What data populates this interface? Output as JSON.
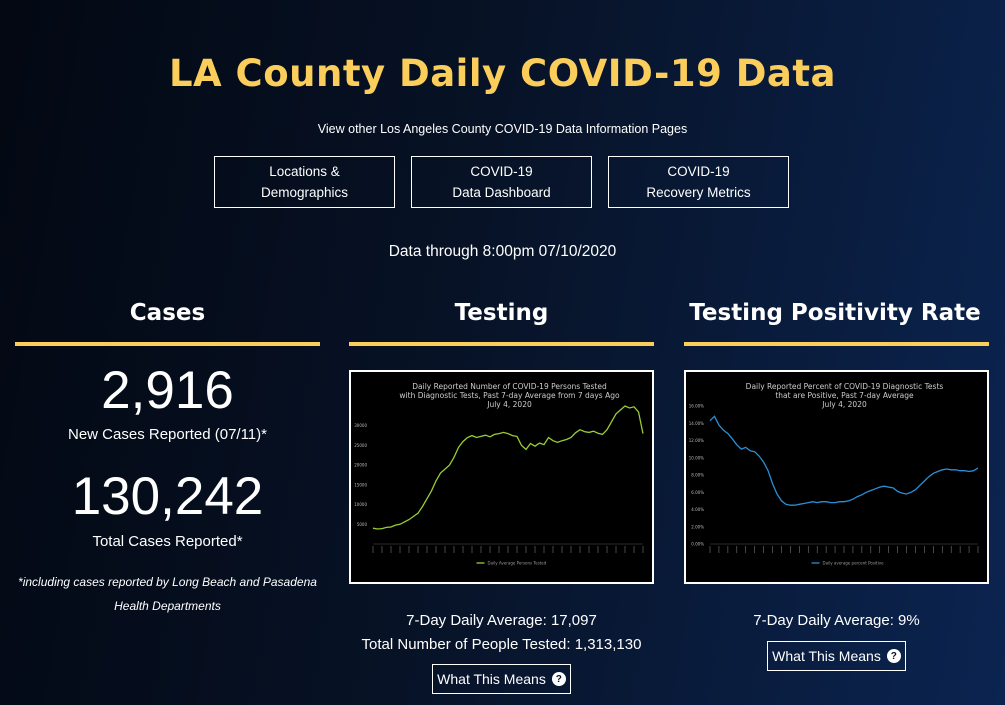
{
  "page": {
    "title": "LA County Daily COVID-19 Data",
    "subtitle": "View other Los Angeles County COVID-19 Data Information Pages",
    "data_through": "Data through 8:00pm 07/10/2020"
  },
  "nav": [
    {
      "line1": "Locations &",
      "line2": "Demographics"
    },
    {
      "line1": "COVID-19",
      "line2": "Data Dashboard"
    },
    {
      "line1": "COVID-19",
      "line2": "Recovery Metrics"
    }
  ],
  "cases": {
    "heading": "Cases",
    "new_value": "2,916",
    "new_label": "New Cases Reported (07/11)*",
    "total_value": "130,242",
    "total_label": "Total Cases Reported*",
    "footnote_line1": "*including cases reported by Long Beach and Pasadena",
    "footnote_line2": "Health Departments"
  },
  "testing": {
    "heading": "Testing",
    "avg_text": "7-Day Daily Average: 17,097",
    "total_text": "Total Number of People Tested: 1,313,130",
    "button_label": "What This Means",
    "help_icon": "question-circle-icon"
  },
  "positivity": {
    "heading": "Testing Positivity Rate",
    "avg_text": "7-Day Daily Average: 9%",
    "button_label": "What This Means",
    "help_icon": "question-circle-icon"
  },
  "colors": {
    "accent": "#fbcd5b",
    "testing_line": "#9acd32",
    "positivity_line": "#2a8fd6"
  },
  "chart_data": [
    {
      "type": "line",
      "title": "Daily Reported Number of COVID-19 Persons Tested with Diagnostic Tests, Past 7-day Average from 7 days Ago",
      "title_lines": [
        "Daily Reported Number of COVID-19 Persons Tested",
        "with Diagnostic Tests, Past 7-day Average from 7 days Ago",
        "July 4, 2020"
      ],
      "subtitle": "July 4, 2020",
      "ylim": [
        0,
        35000
      ],
      "yticks": [
        5000,
        10000,
        15000,
        20000,
        25000,
        30000
      ],
      "ytick_labels": [
        "5000",
        "10000",
        "15000",
        "20000",
        "25000",
        "30000"
      ],
      "legend": "Daily Average Persons Tested",
      "legend_position": "bottom",
      "series": [
        {
          "name": "Daily Average Persons Tested",
          "values": [
            4000,
            3800,
            3900,
            4200,
            4300,
            4800,
            5000,
            5600,
            6200,
            7000,
            7800,
            9500,
            11500,
            13500,
            16000,
            18000,
            19000,
            20000,
            22000,
            24500,
            26000,
            27000,
            27500,
            27000,
            27300,
            27600,
            27200,
            27800,
            28000,
            28300,
            28000,
            27500,
            27300,
            25000,
            24000,
            25500,
            24800,
            25600,
            25200,
            27000,
            26200,
            25800,
            26200,
            26500,
            27000,
            28200,
            29000,
            28500,
            28300,
            28600,
            28100,
            27800,
            29000,
            31000,
            33000,
            34000,
            35000,
            34500,
            34800,
            33500,
            28000
          ]
        }
      ]
    },
    {
      "type": "line",
      "title": "Daily Reported Percent of COVID-19 Diagnostic Tests that are Positive, Past 7-day Average",
      "title_lines": [
        "Daily Reported Percent of COVID-19 Diagnostic Tests",
        "that are Positive, Past 7-day Average",
        "July 4, 2020"
      ],
      "subtitle": "July 4, 2020",
      "ylim": [
        0,
        16
      ],
      "yticks": [
        0,
        2,
        4,
        6,
        8,
        10,
        12,
        14,
        16
      ],
      "ytick_labels": [
        "0.00%",
        "2.00%",
        "4.00%",
        "6.00%",
        "8.00%",
        "10.00%",
        "12.00%",
        "14.00%",
        "16.00%"
      ],
      "legend": "Daily average percent Positive",
      "legend_position": "bottom",
      "series": [
        {
          "name": "Daily average percent Positive",
          "values": [
            14.3,
            14.8,
            13.8,
            13.2,
            12.8,
            12.2,
            11.5,
            11.0,
            11.2,
            10.8,
            10.7,
            10.2,
            9.5,
            8.5,
            7.0,
            5.8,
            5.0,
            4.6,
            4.5,
            4.5,
            4.6,
            4.7,
            4.8,
            4.9,
            4.8,
            4.9,
            4.9,
            4.8,
            4.8,
            4.9,
            4.9,
            5.0,
            5.2,
            5.5,
            5.7,
            6.0,
            6.2,
            6.4,
            6.6,
            6.7,
            6.6,
            6.5,
            6.1,
            5.9,
            5.8,
            6.0,
            6.3,
            6.8,
            7.3,
            7.8,
            8.2,
            8.4,
            8.6,
            8.7,
            8.6,
            8.6,
            8.5,
            8.5,
            8.4,
            8.5,
            8.8
          ]
        }
      ]
    }
  ]
}
